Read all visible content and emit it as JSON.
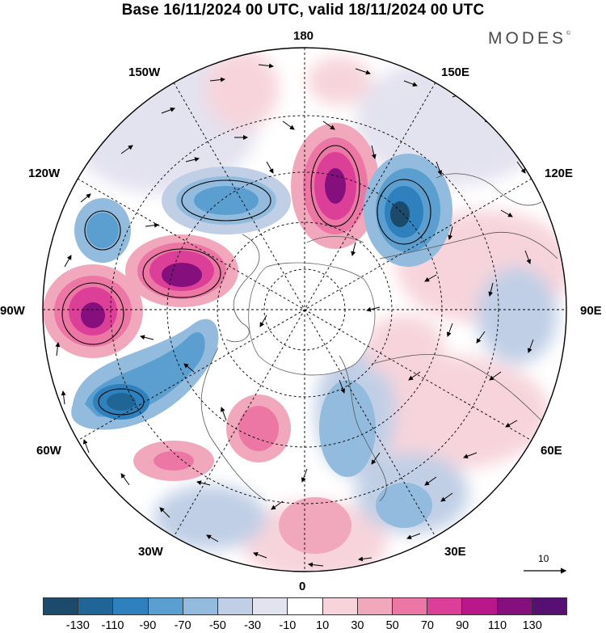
{
  "title": "Base 16/11/2024 00 UTC, valid 18/11/2024 00 UTC",
  "brand": "MODES",
  "brand_mark": "©",
  "map": {
    "projection": "north-polar-stereographic",
    "longitude_labels": {
      "top": "180",
      "bottom": "0",
      "left": "90W",
      "right": "90E",
      "upper_left": "150W",
      "upper_right": "150E",
      "mid_upper_left": "120W",
      "mid_upper_right": "120E",
      "mid_lower_left": "60W",
      "mid_lower_right": "60E",
      "lower_left": "30W",
      "lower_right": "30E"
    },
    "reference_vector_label": "10"
  },
  "colorbar": {
    "tick_labels": [
      "-130",
      "-110",
      "-90",
      "-70",
      "-50",
      "-30",
      "-10",
      "10",
      "30",
      "50",
      "70",
      "90",
      "110",
      "130"
    ],
    "colors": [
      "#1b4a6b",
      "#1f6596",
      "#2e81bd",
      "#5a9fcf",
      "#93bbdd",
      "#c0cfe6",
      "#e3e2ef",
      "#ffffff",
      "#f7d4dc",
      "#f1a8bd",
      "#ec77a5",
      "#dc3f97",
      "#b81889",
      "#860f7e",
      "#561072"
    ]
  }
}
